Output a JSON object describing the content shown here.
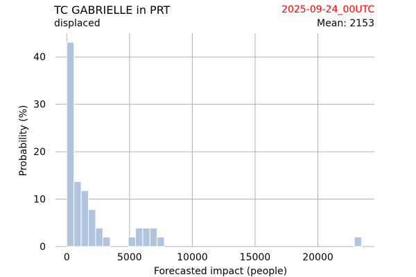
{
  "header": {
    "title": "TC GABRIELLE in PRT",
    "subtitle": "displaced",
    "date": "2025-09-24_00UTC",
    "mean": "Mean: 2153"
  },
  "colors": {
    "date": "#ff0000",
    "bar": "#b0c4de",
    "grid": "#b0b0b0",
    "text": "#000000"
  },
  "chart_data": {
    "type": "bar",
    "title": "TC GABRIELLE in PRT",
    "xlabel": "Forecasted impact (people)",
    "ylabel": "Probability (%)",
    "xlim": [
      -900,
      24500
    ],
    "ylim": [
      0,
      45
    ],
    "xticks": [
      0,
      5000,
      10000,
      15000,
      20000
    ],
    "yticks": [
      0,
      10,
      20,
      30,
      40
    ],
    "grid": true,
    "bin_width": 575,
    "bins": [
      {
        "x": 0,
        "value": 43.1
      },
      {
        "x": 575,
        "value": 13.7
      },
      {
        "x": 1150,
        "value": 11.8
      },
      {
        "x": 1725,
        "value": 7.8
      },
      {
        "x": 2300,
        "value": 3.9
      },
      {
        "x": 2875,
        "value": 2.0
      },
      {
        "x": 4900,
        "value": 2.0
      },
      {
        "x": 5475,
        "value": 3.9
      },
      {
        "x": 6050,
        "value": 3.9
      },
      {
        "x": 6625,
        "value": 3.9
      },
      {
        "x": 7200,
        "value": 2.0
      },
      {
        "x": 22900,
        "value": 2.0
      }
    ]
  }
}
